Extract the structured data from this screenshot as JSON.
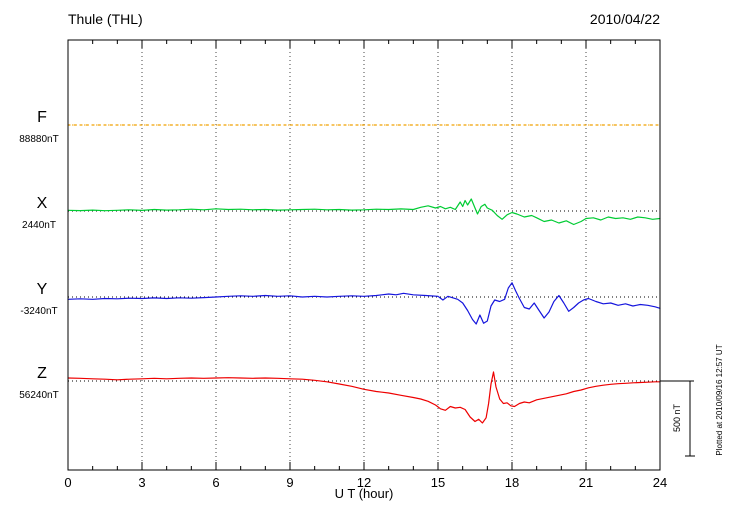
{
  "header": {
    "title": "Thule (THL)",
    "date": "2010/04/22"
  },
  "footer_note": "Plotted at 2010/09/16 12:57 UT",
  "chart_data": {
    "type": "line",
    "title": "Thule (THL)",
    "date": "2010/04/22",
    "xlabel": "U T (hour)",
    "x_range": [
      0,
      24
    ],
    "x_ticks": [
      0,
      3,
      6,
      9,
      12,
      15,
      18,
      21,
      24
    ],
    "grid": "vertical-dotted-at-3h, dotted-baseline-per-trace",
    "legend_position": "left-margin",
    "scale_bar": {
      "label": "500 nT",
      "nT": 500
    },
    "units": "nT offset from each trace baseline",
    "series": [
      {
        "name": "F",
        "label": "F",
        "baseline_label": "88880nT",
        "color": "#f0a000",
        "style": "dotted",
        "points": [
          [
            0,
            0
          ],
          [
            24,
            0
          ]
        ]
      },
      {
        "name": "X",
        "label": "X",
        "baseline_label": "2440nT",
        "color": "#00cc33",
        "style": "solid",
        "points": [
          [
            0,
            5
          ],
          [
            0.5,
            3
          ],
          [
            1,
            6
          ],
          [
            1.5,
            2
          ],
          [
            2,
            5
          ],
          [
            2.5,
            8
          ],
          [
            3,
            4
          ],
          [
            3.5,
            10
          ],
          [
            4,
            6
          ],
          [
            4.5,
            8
          ],
          [
            5,
            12
          ],
          [
            5.5,
            8
          ],
          [
            6,
            15
          ],
          [
            6.5,
            10
          ],
          [
            7,
            12
          ],
          [
            7.5,
            8
          ],
          [
            8,
            10
          ],
          [
            8.5,
            6
          ],
          [
            9,
            8
          ],
          [
            9.5,
            10
          ],
          [
            10,
            12
          ],
          [
            10.5,
            8
          ],
          [
            11,
            10
          ],
          [
            11.5,
            6
          ],
          [
            12,
            8
          ],
          [
            12.5,
            12
          ],
          [
            13,
            10
          ],
          [
            13.5,
            14
          ],
          [
            14,
            10
          ],
          [
            14.3,
            25
          ],
          [
            14.6,
            35
          ],
          [
            14.9,
            20
          ],
          [
            15.1,
            30
          ],
          [
            15.3,
            15
          ],
          [
            15.5,
            25
          ],
          [
            15.7,
            10
          ],
          [
            15.9,
            60
          ],
          [
            16,
            30
          ],
          [
            16.1,
            70
          ],
          [
            16.2,
            40
          ],
          [
            16.35,
            80
          ],
          [
            16.5,
            20
          ],
          [
            16.6,
            -20
          ],
          [
            16.75,
            30
          ],
          [
            16.9,
            45
          ],
          [
            17,
            20
          ],
          [
            17.2,
            5
          ],
          [
            17.4,
            -30
          ],
          [
            17.6,
            -55
          ],
          [
            17.8,
            -25
          ],
          [
            18,
            -10
          ],
          [
            18.2,
            -20
          ],
          [
            18.5,
            -40
          ],
          [
            18.8,
            -30
          ],
          [
            19,
            -45
          ],
          [
            19.3,
            -70
          ],
          [
            19.6,
            -60
          ],
          [
            19.9,
            -80
          ],
          [
            20.2,
            -65
          ],
          [
            20.5,
            -90
          ],
          [
            20.8,
            -70
          ],
          [
            21,
            -50
          ],
          [
            21.3,
            -45
          ],
          [
            21.6,
            -60
          ],
          [
            21.9,
            -40
          ],
          [
            22.2,
            -50
          ],
          [
            22.5,
            -45
          ],
          [
            22.8,
            -55
          ],
          [
            23.1,
            -40
          ],
          [
            23.4,
            -45
          ],
          [
            23.7,
            -55
          ],
          [
            24,
            -50
          ]
        ]
      },
      {
        "name": "Y",
        "label": "Y",
        "baseline_label": "-3240nT",
        "color": "#1515dd",
        "style": "solid",
        "points": [
          [
            0,
            -15
          ],
          [
            0.5,
            -12
          ],
          [
            1,
            -15
          ],
          [
            1.5,
            -10
          ],
          [
            2,
            -12
          ],
          [
            2.5,
            -8
          ],
          [
            3,
            -10
          ],
          [
            3.5,
            -6
          ],
          [
            4,
            -10
          ],
          [
            4.5,
            -5
          ],
          [
            5,
            -8
          ],
          [
            5.5,
            -4
          ],
          [
            6,
            0
          ],
          [
            6.5,
            5
          ],
          [
            7,
            8
          ],
          [
            7.5,
            5
          ],
          [
            8,
            10
          ],
          [
            8.5,
            5
          ],
          [
            9,
            8
          ],
          [
            9.5,
            0
          ],
          [
            10,
            5
          ],
          [
            10.5,
            0
          ],
          [
            11,
            5
          ],
          [
            11.5,
            8
          ],
          [
            12,
            5
          ],
          [
            12.5,
            10
          ],
          [
            13,
            20
          ],
          [
            13.3,
            15
          ],
          [
            13.6,
            25
          ],
          [
            14,
            15
          ],
          [
            14.5,
            10
          ],
          [
            15,
            5
          ],
          [
            15.2,
            -20
          ],
          [
            15.4,
            5
          ],
          [
            15.6,
            -5
          ],
          [
            15.8,
            -15
          ],
          [
            16,
            -40
          ],
          [
            16.2,
            -90
          ],
          [
            16.4,
            -150
          ],
          [
            16.55,
            -180
          ],
          [
            16.7,
            -120
          ],
          [
            16.85,
            -175
          ],
          [
            17,
            -160
          ],
          [
            17.15,
            -60
          ],
          [
            17.3,
            -20
          ],
          [
            17.5,
            -30
          ],
          [
            17.7,
            -15
          ],
          [
            17.85,
            60
          ],
          [
            18,
            95
          ],
          [
            18.15,
            40
          ],
          [
            18.3,
            -10
          ],
          [
            18.5,
            -70
          ],
          [
            18.7,
            -80
          ],
          [
            18.9,
            -40
          ],
          [
            19.1,
            -90
          ],
          [
            19.3,
            -140
          ],
          [
            19.5,
            -100
          ],
          [
            19.7,
            -30
          ],
          [
            19.9,
            10
          ],
          [
            20.1,
            -40
          ],
          [
            20.3,
            -95
          ],
          [
            20.5,
            -70
          ],
          [
            20.7,
            -40
          ],
          [
            20.9,
            -20
          ],
          [
            21.1,
            -10
          ],
          [
            21.4,
            -30
          ],
          [
            21.7,
            -45
          ],
          [
            22,
            -40
          ],
          [
            22.3,
            -55
          ],
          [
            22.6,
            -45
          ],
          [
            22.9,
            -60
          ],
          [
            23.2,
            -50
          ],
          [
            23.5,
            -55
          ],
          [
            23.8,
            -65
          ],
          [
            24,
            -75
          ]
        ]
      },
      {
        "name": "Z",
        "label": "Z",
        "baseline_label": "56240nT",
        "color": "#ee0000",
        "style": "solid",
        "points": [
          [
            0,
            20
          ],
          [
            0.5,
            18
          ],
          [
            1,
            15
          ],
          [
            1.5,
            12
          ],
          [
            2,
            8
          ],
          [
            2.5,
            12
          ],
          [
            3,
            15
          ],
          [
            3.5,
            18
          ],
          [
            4,
            15
          ],
          [
            4.5,
            18
          ],
          [
            5,
            20
          ],
          [
            5.5,
            18
          ],
          [
            6,
            20
          ],
          [
            6.5,
            22
          ],
          [
            7,
            20
          ],
          [
            7.5,
            18
          ],
          [
            8,
            20
          ],
          [
            8.5,
            18
          ],
          [
            9,
            15
          ],
          [
            9.5,
            12
          ],
          [
            10,
            5
          ],
          [
            10.5,
            -5
          ],
          [
            11,
            -20
          ],
          [
            11.5,
            -35
          ],
          [
            12,
            -55
          ],
          [
            12.5,
            -70
          ],
          [
            13,
            -80
          ],
          [
            13.5,
            -95
          ],
          [
            14,
            -110
          ],
          [
            14.3,
            -120
          ],
          [
            14.6,
            -135
          ],
          [
            14.9,
            -160
          ],
          [
            15.1,
            -185
          ],
          [
            15.3,
            -195
          ],
          [
            15.5,
            -170
          ],
          [
            15.7,
            -180
          ],
          [
            15.9,
            -175
          ],
          [
            16.1,
            -190
          ],
          [
            16.3,
            -240
          ],
          [
            16.5,
            -270
          ],
          [
            16.65,
            -255
          ],
          [
            16.8,
            -280
          ],
          [
            16.95,
            -245
          ],
          [
            17.05,
            -150
          ],
          [
            17.15,
            -20
          ],
          [
            17.25,
            60
          ],
          [
            17.35,
            -40
          ],
          [
            17.5,
            -120
          ],
          [
            17.65,
            -150
          ],
          [
            17.8,
            -145
          ],
          [
            17.95,
            -165
          ],
          [
            18.1,
            -170
          ],
          [
            18.3,
            -150
          ],
          [
            18.5,
            -140
          ],
          [
            18.7,
            -145
          ],
          [
            19,
            -125
          ],
          [
            19.3,
            -115
          ],
          [
            19.6,
            -105
          ],
          [
            19.9,
            -95
          ],
          [
            20.2,
            -85
          ],
          [
            20.5,
            -70
          ],
          [
            20.8,
            -60
          ],
          [
            21.1,
            -45
          ],
          [
            21.4,
            -35
          ],
          [
            21.7,
            -28
          ],
          [
            22,
            -22
          ],
          [
            22.3,
            -18
          ],
          [
            22.6,
            -15
          ],
          [
            22.9,
            -12
          ],
          [
            23.2,
            -10
          ],
          [
            23.5,
            -8
          ],
          [
            23.8,
            -5
          ],
          [
            24,
            -5
          ]
        ]
      }
    ]
  }
}
